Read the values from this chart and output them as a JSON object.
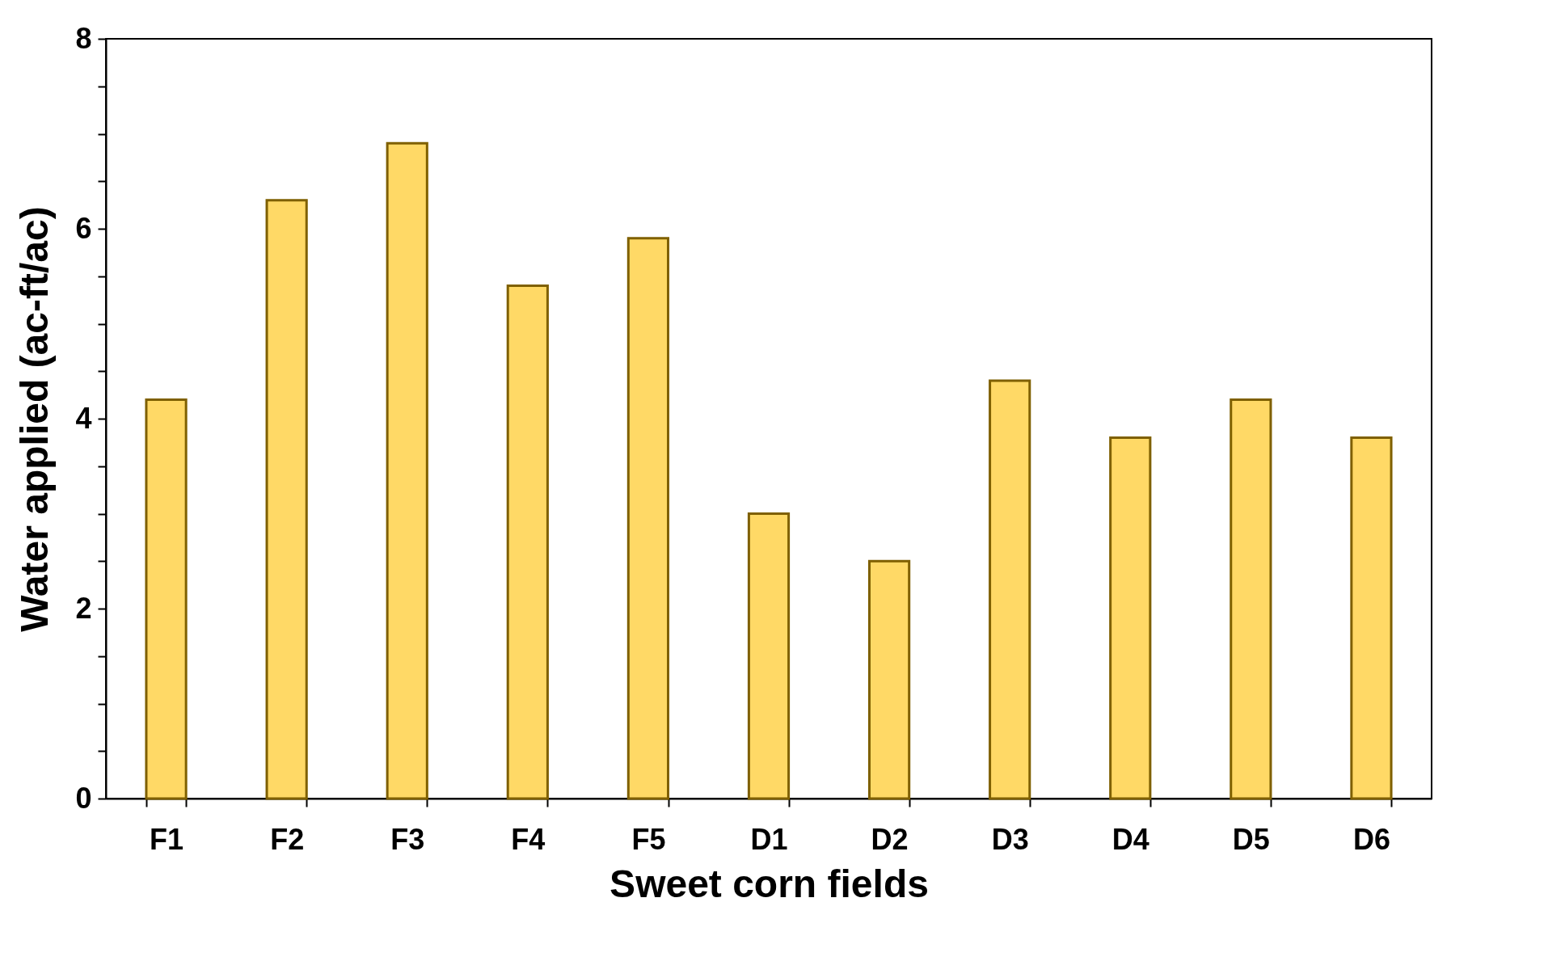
{
  "chart_data": {
    "type": "bar",
    "xlabel": "Sweet corn fields",
    "ylabel": "Water applied (ac-ft/ac)",
    "categories": [
      "F1",
      "F2",
      "F3",
      "F4",
      "F5",
      "D1",
      "D2",
      "D3",
      "D4",
      "D5",
      "D6"
    ],
    "values": [
      4.2,
      6.3,
      6.9,
      5.4,
      5.9,
      3.0,
      2.5,
      4.4,
      3.8,
      4.2,
      3.8
    ],
    "color": "#ffd966",
    "ylim": [
      0,
      8
    ],
    "yticks": [
      0,
      {
        "value": 0.5,
        "label": null
      },
      {
        "value": 1,
        "label": null
      },
      {
        "value": 1.5,
        "label": null
      },
      2,
      {
        "value": 2.5,
        "label": null
      },
      {
        "value": 3,
        "label": null
      },
      {
        "value": 3.5,
        "label": null
      },
      4,
      {
        "value": 4.5,
        "label": null
      },
      {
        "value": 5,
        "label": null
      },
      {
        "value": 5.5,
        "label": null
      },
      6,
      {
        "value": 6.5,
        "label": null
      },
      {
        "value": 7,
        "label": null
      },
      {
        "value": 7.5,
        "label": null
      },
      8
    ],
    "grid": false
  }
}
